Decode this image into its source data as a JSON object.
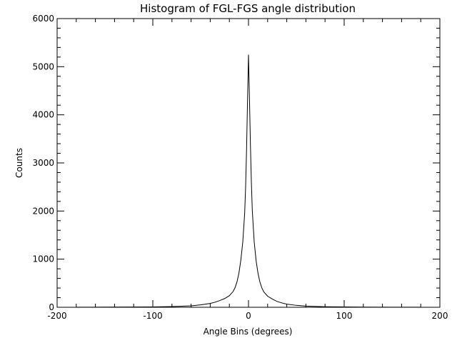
{
  "chart_data": {
    "type": "line",
    "title": "Histogram of FGL-FGS angle distribution",
    "xlabel": "Angle Bins (degrees)",
    "ylabel": "Counts",
    "xlim": [
      -200,
      200
    ],
    "ylim": [
      0,
      6000
    ],
    "x_ticks": [
      -200,
      -100,
      0,
      100,
      200
    ],
    "x_tick_labels": [
      "-200",
      "-100",
      "0",
      "100",
      "200"
    ],
    "y_ticks": [
      0,
      1000,
      2000,
      3000,
      4000,
      5000,
      6000
    ],
    "y_tick_labels": [
      "0",
      "1000",
      "2000",
      "3000",
      "4000",
      "5000",
      "6000"
    ],
    "grid": false,
    "series": [
      {
        "name": "Counts",
        "x": [
          -180,
          -150,
          -120,
          -100,
          -80,
          -60,
          -50,
          -40,
          -35,
          -30,
          -25,
          -20,
          -16,
          -14,
          -12,
          -10,
          -8,
          -6,
          -4,
          -3,
          -2,
          -1,
          0,
          1,
          2,
          3,
          4,
          6,
          8,
          10,
          12,
          14,
          16,
          20,
          25,
          30,
          35,
          40,
          50,
          60,
          80,
          100,
          120,
          150,
          180
        ],
        "values": [
          2,
          3,
          5,
          8,
          15,
          30,
          50,
          80,
          105,
          140,
          180,
          240,
          330,
          410,
          530,
          710,
          980,
          1350,
          1950,
          2500,
          3300,
          4300,
          5250,
          4350,
          3400,
          2600,
          2000,
          1350,
          960,
          700,
          520,
          400,
          320,
          230,
          170,
          120,
          90,
          65,
          40,
          25,
          12,
          7,
          4,
          2,
          1
        ]
      }
    ]
  }
}
